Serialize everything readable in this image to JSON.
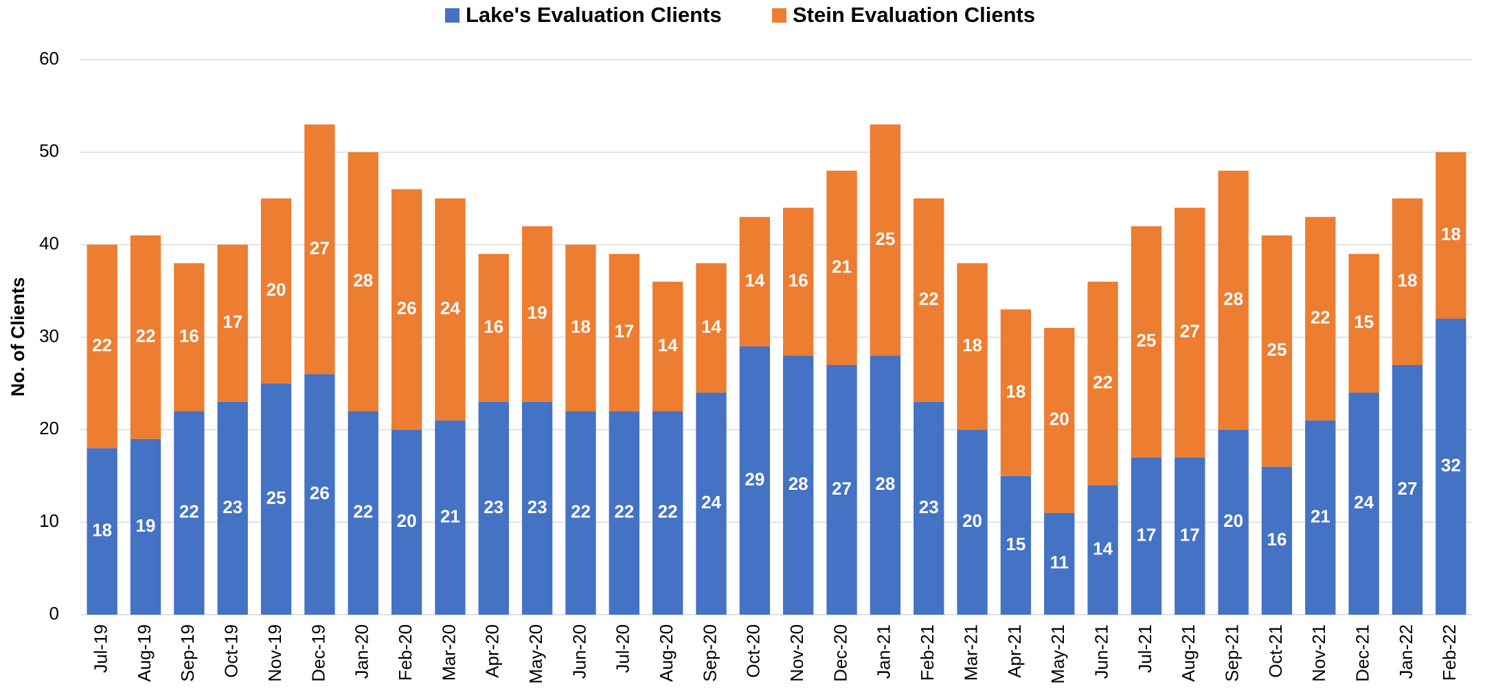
{
  "chart_data": {
    "type": "stacked-bar",
    "y_label": "No. of Clients",
    "categories": [
      "Jul-19",
      "Aug-19",
      "Sep-19",
      "Oct-19",
      "Nov-19",
      "Dec-19",
      "Jan-20",
      "Feb-20",
      "Mar-20",
      "Apr-20",
      "May-20",
      "Jun-20",
      "Jul-20",
      "Aug-20",
      "Sep-20",
      "Oct-20",
      "Nov-20",
      "Dec-20",
      "Jan-21",
      "Feb-21",
      "Mar-21",
      "Apr-21",
      "May-21",
      "Jun-21",
      "Jul-21",
      "Aug-21",
      "Sep-21",
      "Oct-21",
      "Nov-21",
      "Dec-21",
      "Jan-22",
      "Feb-22"
    ],
    "series": [
      {
        "name": "Lake's Evaluation Clients",
        "color": "#4472c4",
        "values": [
          18,
          19,
          22,
          23,
          25,
          26,
          22,
          20,
          21,
          23,
          23,
          22,
          22,
          22,
          24,
          29,
          28,
          27,
          28,
          23,
          20,
          15,
          11,
          14,
          17,
          17,
          20,
          16,
          21,
          24,
          27,
          32
        ]
      },
      {
        "name": "Stein Evaluation Clients",
        "color": "#ed7d31",
        "values": [
          22,
          22,
          16,
          17,
          20,
          27,
          28,
          26,
          24,
          16,
          19,
          18,
          17,
          14,
          14,
          14,
          16,
          21,
          25,
          22,
          18,
          18,
          20,
          22,
          25,
          27,
          28,
          25,
          22,
          15,
          18,
          18
        ]
      }
    ],
    "ylim": [
      0,
      60
    ],
    "yticks": [
      0,
      10,
      20,
      30,
      40,
      50,
      60
    ],
    "grid": true,
    "legend": "top"
  }
}
